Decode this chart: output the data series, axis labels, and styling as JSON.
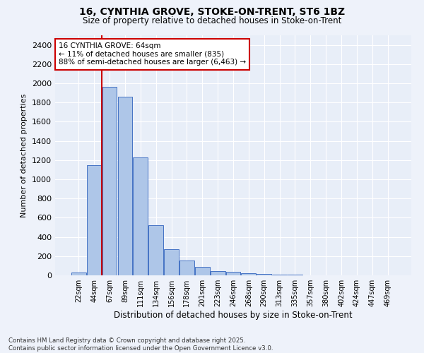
{
  "title1": "16, CYNTHIA GROVE, STOKE-ON-TRENT, ST6 1BZ",
  "title2": "Size of property relative to detached houses in Stoke-on-Trent",
  "xlabel": "Distribution of detached houses by size in Stoke-on-Trent",
  "ylabel": "Number of detached properties",
  "bins": [
    "22sqm",
    "44sqm",
    "67sqm",
    "89sqm",
    "111sqm",
    "134sqm",
    "156sqm",
    "178sqm",
    "201sqm",
    "223sqm",
    "246sqm",
    "268sqm",
    "290sqm",
    "313sqm",
    "335sqm",
    "357sqm",
    "380sqm",
    "402sqm",
    "424sqm",
    "447sqm",
    "469sqm"
  ],
  "values": [
    30,
    1150,
    1960,
    1860,
    1230,
    520,
    275,
    155,
    90,
    45,
    40,
    20,
    15,
    5,
    5,
    3,
    2,
    2,
    2,
    2,
    2
  ],
  "bar_color": "#aec6e8",
  "bar_edge_color": "#4472c4",
  "vline_color": "#cc0000",
  "annotation_text": "16 CYNTHIA GROVE: 64sqm\n← 11% of detached houses are smaller (835)\n88% of semi-detached houses are larger (6,463) →",
  "annotation_box_color": "#ffffff",
  "annotation_box_edge": "#cc0000",
  "ylim": [
    0,
    2500
  ],
  "yticks": [
    0,
    200,
    400,
    600,
    800,
    1000,
    1200,
    1400,
    1600,
    1800,
    2000,
    2200,
    2400
  ],
  "bg_color": "#e8eef8",
  "grid_color": "#ffffff",
  "fig_bg_color": "#eef2fa",
  "footer1": "Contains HM Land Registry data © Crown copyright and database right 2025.",
  "footer2": "Contains public sector information licensed under the Open Government Licence v3.0."
}
